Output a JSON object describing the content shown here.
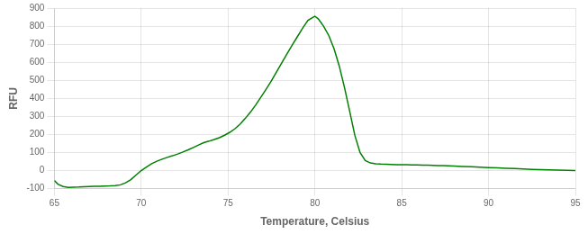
{
  "chart_data": {
    "type": "line",
    "xlabel": "Temperature, Celsius",
    "ylabel": "RFU",
    "x": [
      65.0,
      65.2,
      65.5,
      65.8,
      66.1,
      66.4,
      66.7,
      67.0,
      67.3,
      67.6,
      67.9,
      68.2,
      68.5,
      68.8,
      69.1,
      69.4,
      69.7,
      70.0,
      70.3,
      70.6,
      70.9,
      71.2,
      71.5,
      71.8,
      72.1,
      72.4,
      72.7,
      73.0,
      73.3,
      73.6,
      73.9,
      74.2,
      74.5,
      74.8,
      75.1,
      75.4,
      75.7,
      76.0,
      76.3,
      76.6,
      76.9,
      77.2,
      77.5,
      77.8,
      78.1,
      78.4,
      78.7,
      79.0,
      79.3,
      79.6,
      79.9,
      80.0,
      80.2,
      80.5,
      80.8,
      81.1,
      81.4,
      81.7,
      82.0,
      82.3,
      82.6,
      82.9,
      83.2,
      83.5,
      83.8,
      84.1,
      84.4,
      84.7,
      85.0,
      85.3,
      85.6,
      85.9,
      86.2,
      86.5,
      86.8,
      87.1,
      87.4,
      87.7,
      88.0,
      88.5,
      89.0,
      89.5,
      90.0,
      90.5,
      91.0,
      91.5,
      92.0,
      92.5,
      93.0,
      93.5,
      94.0,
      94.5,
      95.0
    ],
    "values": [
      -55,
      -75,
      -88,
      -93,
      -92,
      -91,
      -89,
      -88,
      -87,
      -87,
      -86,
      -85,
      -83,
      -79,
      -68,
      -50,
      -25,
      0,
      20,
      38,
      52,
      63,
      73,
      82,
      92,
      103,
      115,
      128,
      142,
      155,
      163,
      172,
      182,
      196,
      212,
      232,
      258,
      290,
      325,
      365,
      408,
      452,
      498,
      548,
      598,
      648,
      696,
      743,
      790,
      832,
      850,
      855,
      840,
      800,
      748,
      676,
      580,
      462,
      330,
      195,
      100,
      55,
      42,
      38,
      36,
      35,
      34,
      33,
      33,
      32,
      31,
      31,
      30,
      30,
      29,
      28,
      27,
      26,
      25,
      23,
      21,
      19,
      17,
      15,
      13,
      11,
      9,
      7,
      5,
      4,
      3,
      2,
      0
    ],
    "color": "#008000",
    "xlim": [
      65,
      95
    ],
    "ylim": [
      -100,
      900
    ],
    "xticks": [
      65,
      70,
      75,
      80,
      85,
      90,
      95
    ],
    "yticks": [
      -100,
      0,
      100,
      200,
      300,
      400,
      500,
      600,
      700,
      800,
      900
    ],
    "grid": true
  }
}
